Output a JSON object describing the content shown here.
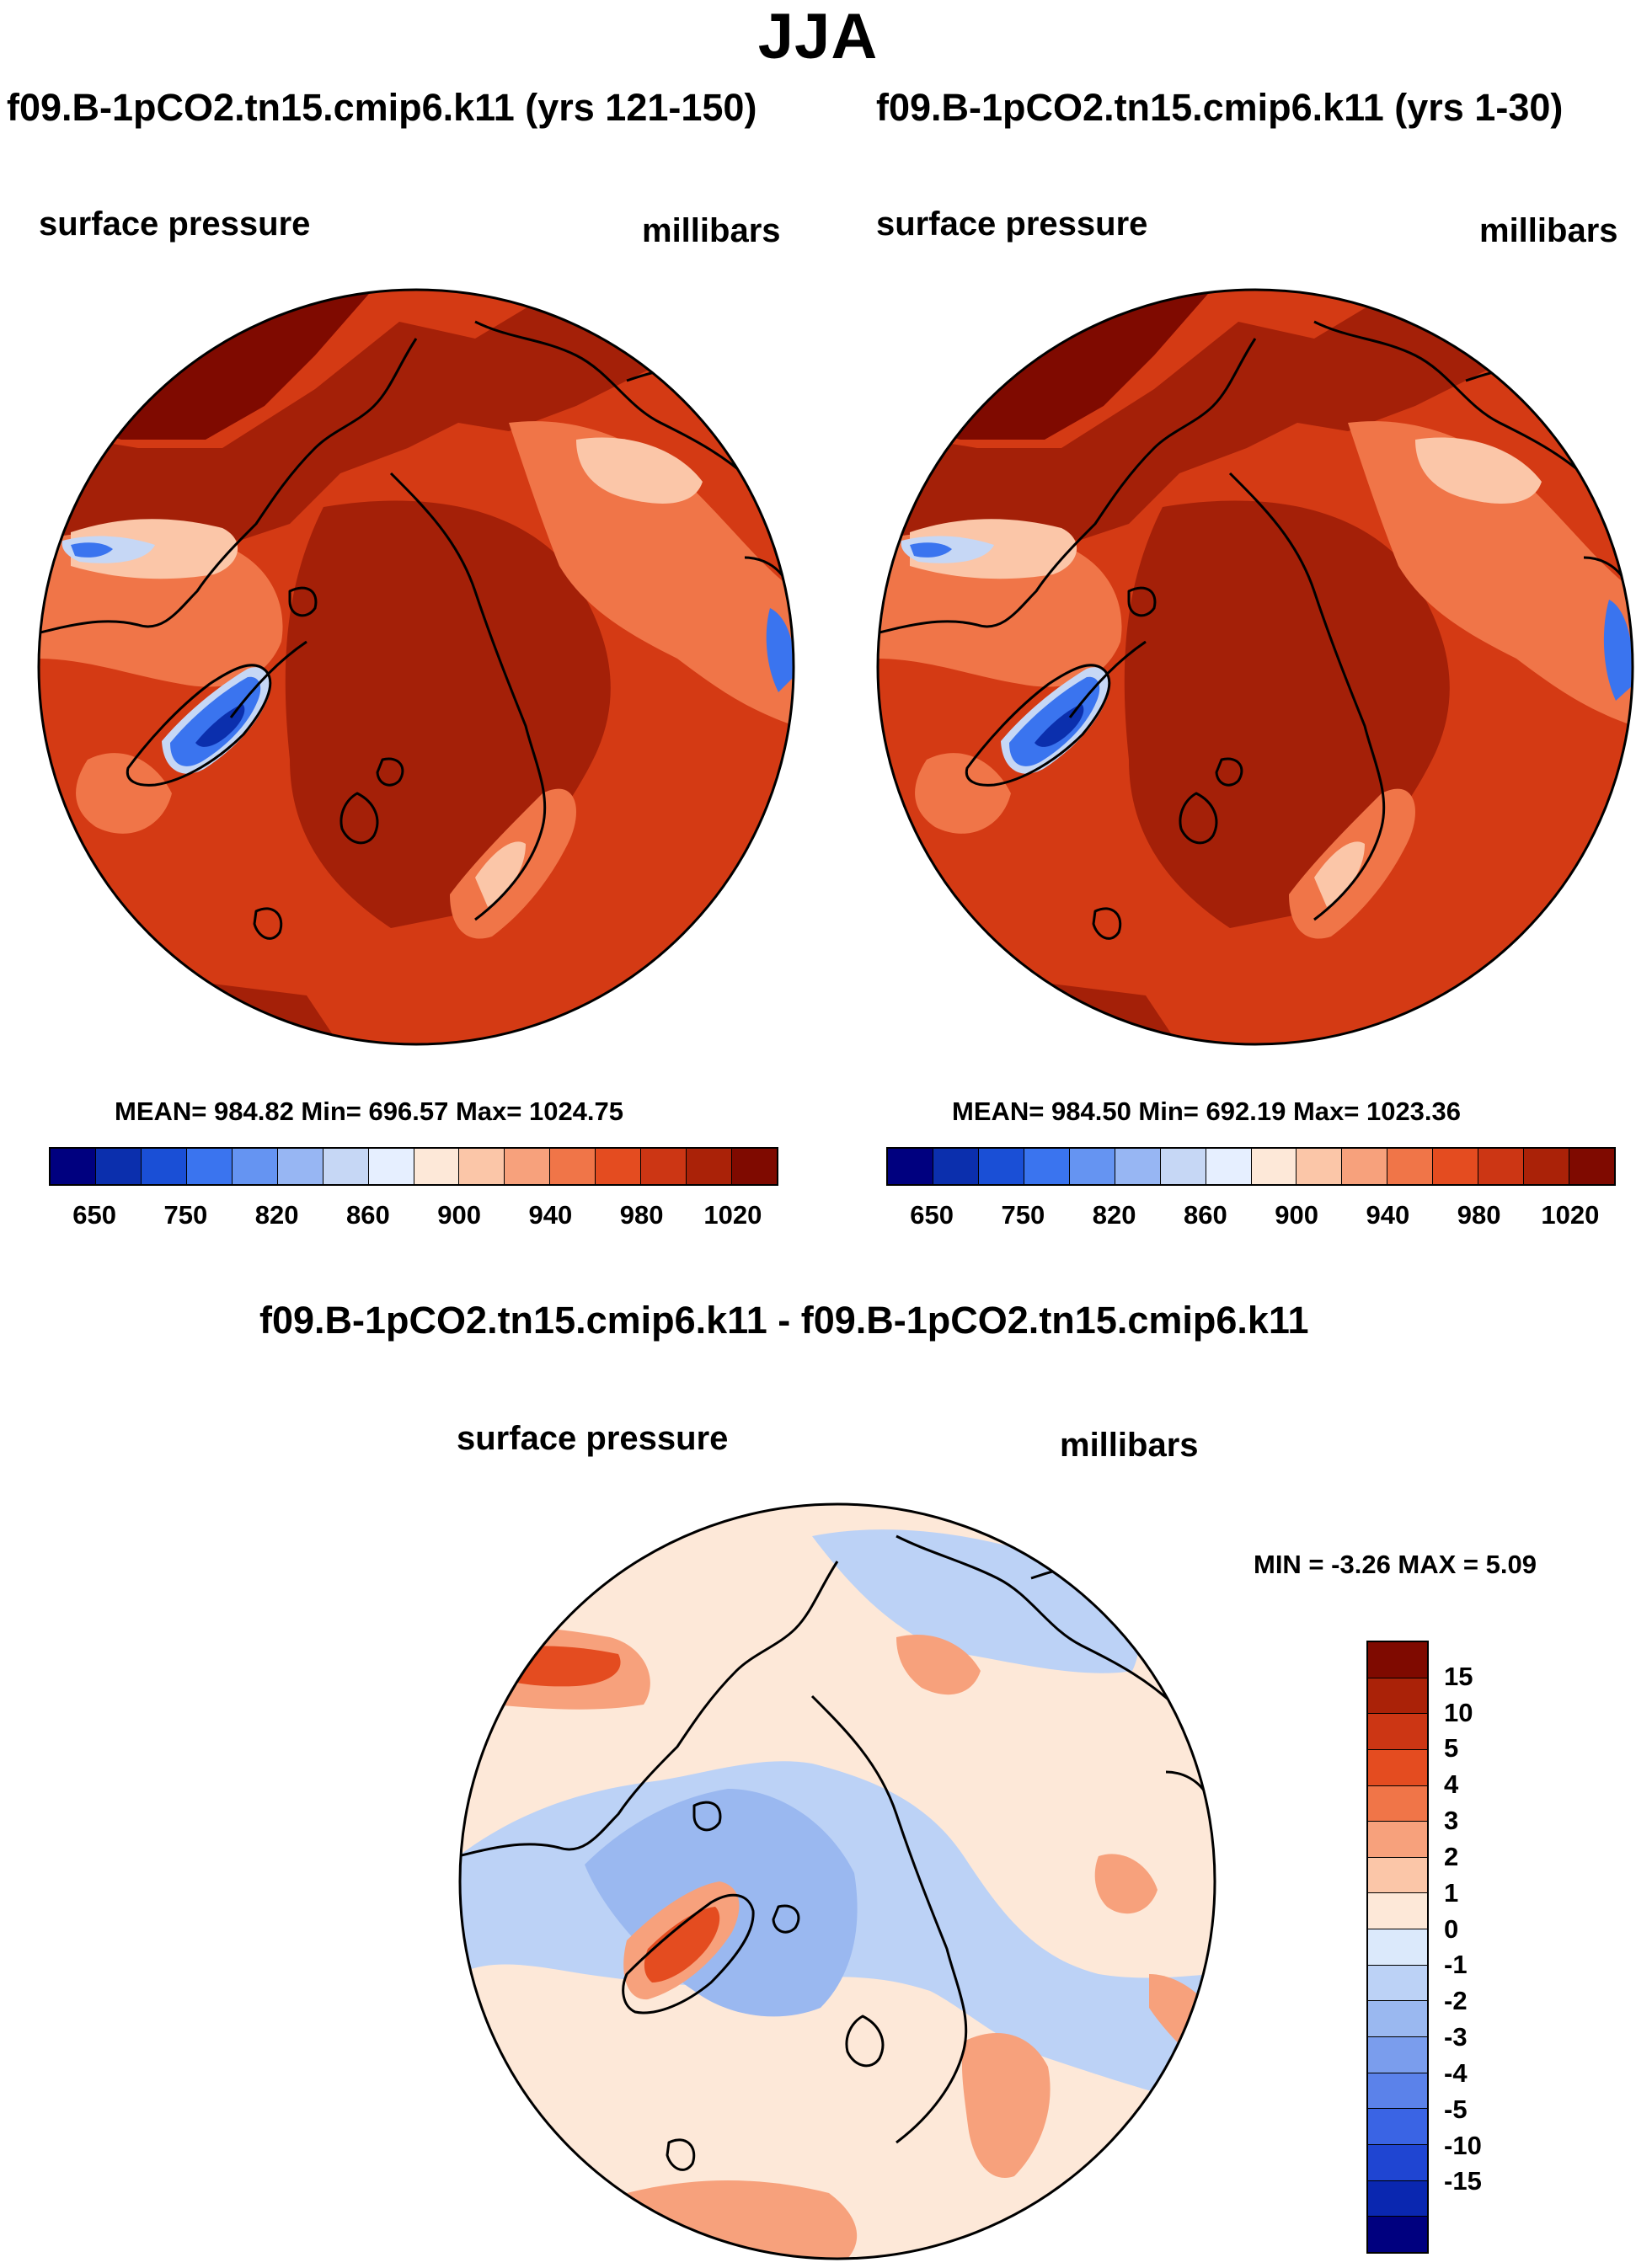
{
  "season": "JJA",
  "panels": [
    {
      "title": "f09.B-1pCO2.tn15.cmip6.k11 (yrs 121-150)",
      "variable": "surface pressure",
      "units": "millibars",
      "stats": "MEAN= 984.82  Min= 696.57  Max= 1024.75"
    },
    {
      "title": "f09.B-1pCO2.tn15.cmip6.k11 (yrs 1-30)",
      "variable": "surface pressure",
      "units": "millibars",
      "stats": "MEAN= 984.50  Min= 692.19  Max= 1023.36"
    }
  ],
  "abs_colorbar": {
    "colors": [
      "#00007f",
      "#0b2fad",
      "#1a4fd6",
      "#3a74ef",
      "#6594f2",
      "#97b6f3",
      "#c6d7f5",
      "#e6efff",
      "#fde8d8",
      "#fbc6a8",
      "#f7a17c",
      "#f07548",
      "#e44c20",
      "#cc3614",
      "#aa2208",
      "#7f0a00"
    ],
    "ticks": [
      "650",
      "750",
      "820",
      "860",
      "900",
      "940",
      "980",
      "1020"
    ]
  },
  "diff_panel": {
    "title": "f09.B-1pCO2.tn15.cmip6.k11 - f09.B-1pCO2.tn15.cmip6.k11",
    "variable": "surface pressure",
    "units": "millibars",
    "minmax": "MIN =  -3.26 MAX =   5.09"
  },
  "diff_colorbar": {
    "colors": [
      "#7f0a00",
      "#aa2208",
      "#cc3614",
      "#e44c20",
      "#f07548",
      "#f7a17c",
      "#fbc6a8",
      "#fde8d8",
      "#dbe9fb",
      "#bcd2f6",
      "#9ab8f0",
      "#7a9ded",
      "#5b82ea",
      "#3a64e4",
      "#1f45d2",
      "#0a27b0",
      "#00007f"
    ],
    "ticks": [
      "15",
      "10",
      "5",
      "4",
      "3",
      "2",
      "1",
      "0",
      "-1",
      "-2",
      "-3",
      "-4",
      "-5",
      "-10",
      "-15"
    ]
  },
  "map_palette": {
    "abs_background": "#d43a14",
    "abs_dark": "#a42008",
    "abs_darkest": "#7f0a00",
    "abs_light": "#f07548",
    "abs_pale": "#fbc6a8",
    "abs_blue": "#3a74ef",
    "abs_deepblue": "#0b2fad",
    "abs_paleblue": "#c6d7f5",
    "diff_background": "#fde8d8",
    "diff_blue": "#bcd2f6",
    "diff_midblue": "#9ab8f0",
    "diff_red": "#f7a17c",
    "diff_darkred": "#e44c20"
  }
}
